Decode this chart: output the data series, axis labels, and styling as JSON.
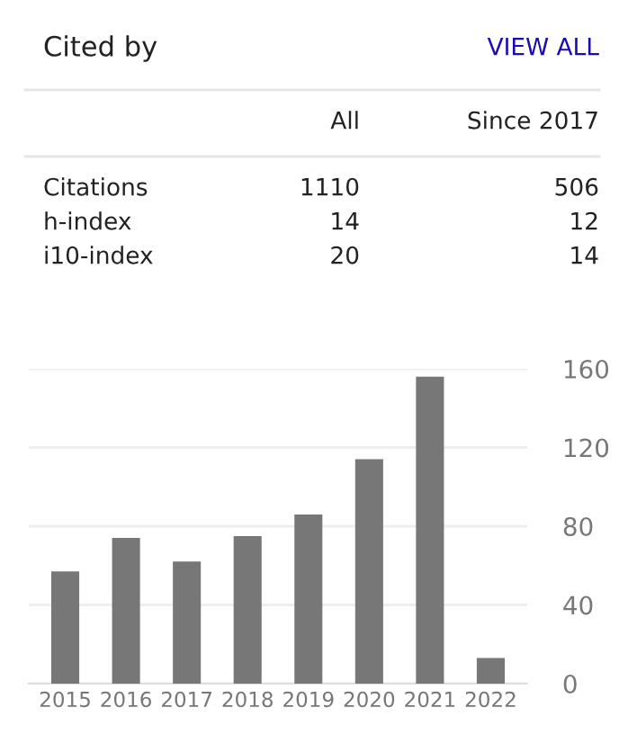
{
  "chart_data": [
    {
      "type": "other",
      "title": "Cited by",
      "annotations": [
        "VIEW ALL"
      ],
      "categories": [
        "Citations",
        "h-index",
        "i10-index"
      ],
      "series": [
        {
          "name": "All",
          "values": [
            1110,
            14,
            20
          ]
        },
        {
          "name": "Since 2017",
          "values": [
            506,
            12,
            14
          ]
        }
      ],
      "data_labels": true
    },
    {
      "type": "bar",
      "categories": [
        "2015",
        "2016",
        "2017",
        "2018",
        "2019",
        "2020",
        "2021",
        "2022"
      ],
      "values": [
        57,
        74,
        62,
        75,
        86,
        114,
        156,
        13
      ],
      "color": "#777777",
      "ylim": [
        0,
        160
      ],
      "yticks": [
        0,
        40,
        80,
        120,
        160
      ],
      "grid": "y",
      "legend": false
    }
  ]
}
